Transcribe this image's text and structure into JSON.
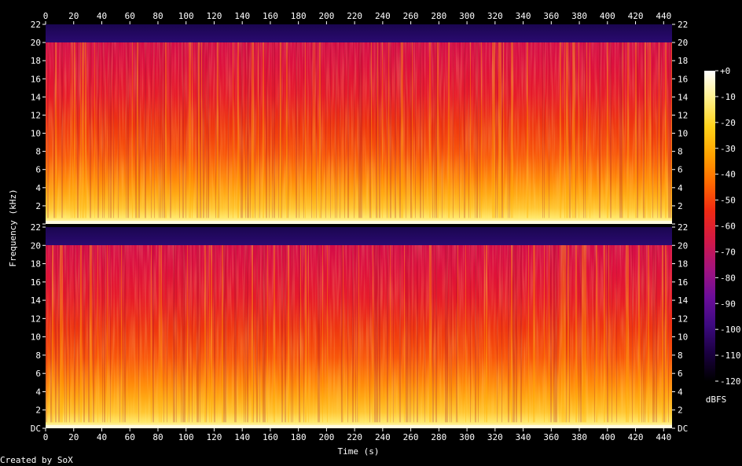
{
  "chart_data": {
    "type": "heatmap",
    "title": "",
    "xlabel": "Time (s)",
    "ylabel": "Frequency (kHz)",
    "xlim": [
      0,
      446
    ],
    "ylim": [
      0,
      22
    ],
    "x_ticks": [
      "0",
      "20",
      "40",
      "60",
      "80",
      "100",
      "120",
      "140",
      "160",
      "180",
      "200",
      "220",
      "240",
      "260",
      "280",
      "300",
      "320",
      "340",
      "360",
      "380",
      "400",
      "420",
      "440"
    ],
    "y_tick_values": [
      0,
      2,
      4,
      6,
      8,
      10,
      12,
      14,
      16,
      18,
      20,
      22
    ],
    "y_ticks": [
      "DC",
      "2",
      "4",
      "6",
      "8",
      "10",
      "12",
      "14",
      "16",
      "18",
      "20",
      "22"
    ],
    "channels": [
      {
        "name": "",
        "frequency_range_khz": [
          0,
          22
        ],
        "content_cutoff_khz": 20
      },
      {
        "name": "",
        "frequency_range_khz": [
          0,
          22
        ],
        "content_cutoff_khz": 20
      }
    ],
    "colorbar": {
      "label": "dBFS",
      "range": [
        -120,
        0
      ],
      "ticks": [
        "+0",
        "-10",
        "-20",
        "-30",
        "-40",
        "-50",
        "-60",
        "-70",
        "-80",
        "-90",
        "-100",
        "-110",
        "-120"
      ],
      "colors": [
        "#000000",
        "#1a0040",
        "#3d0a80",
        "#6b0d9a",
        "#a2137f",
        "#d01848",
        "#f02a12",
        "#ff6a00",
        "#ffa300",
        "#ffd21a",
        "#fff08a",
        "#ffffff"
      ]
    },
    "footer": "Created by SoX"
  }
}
